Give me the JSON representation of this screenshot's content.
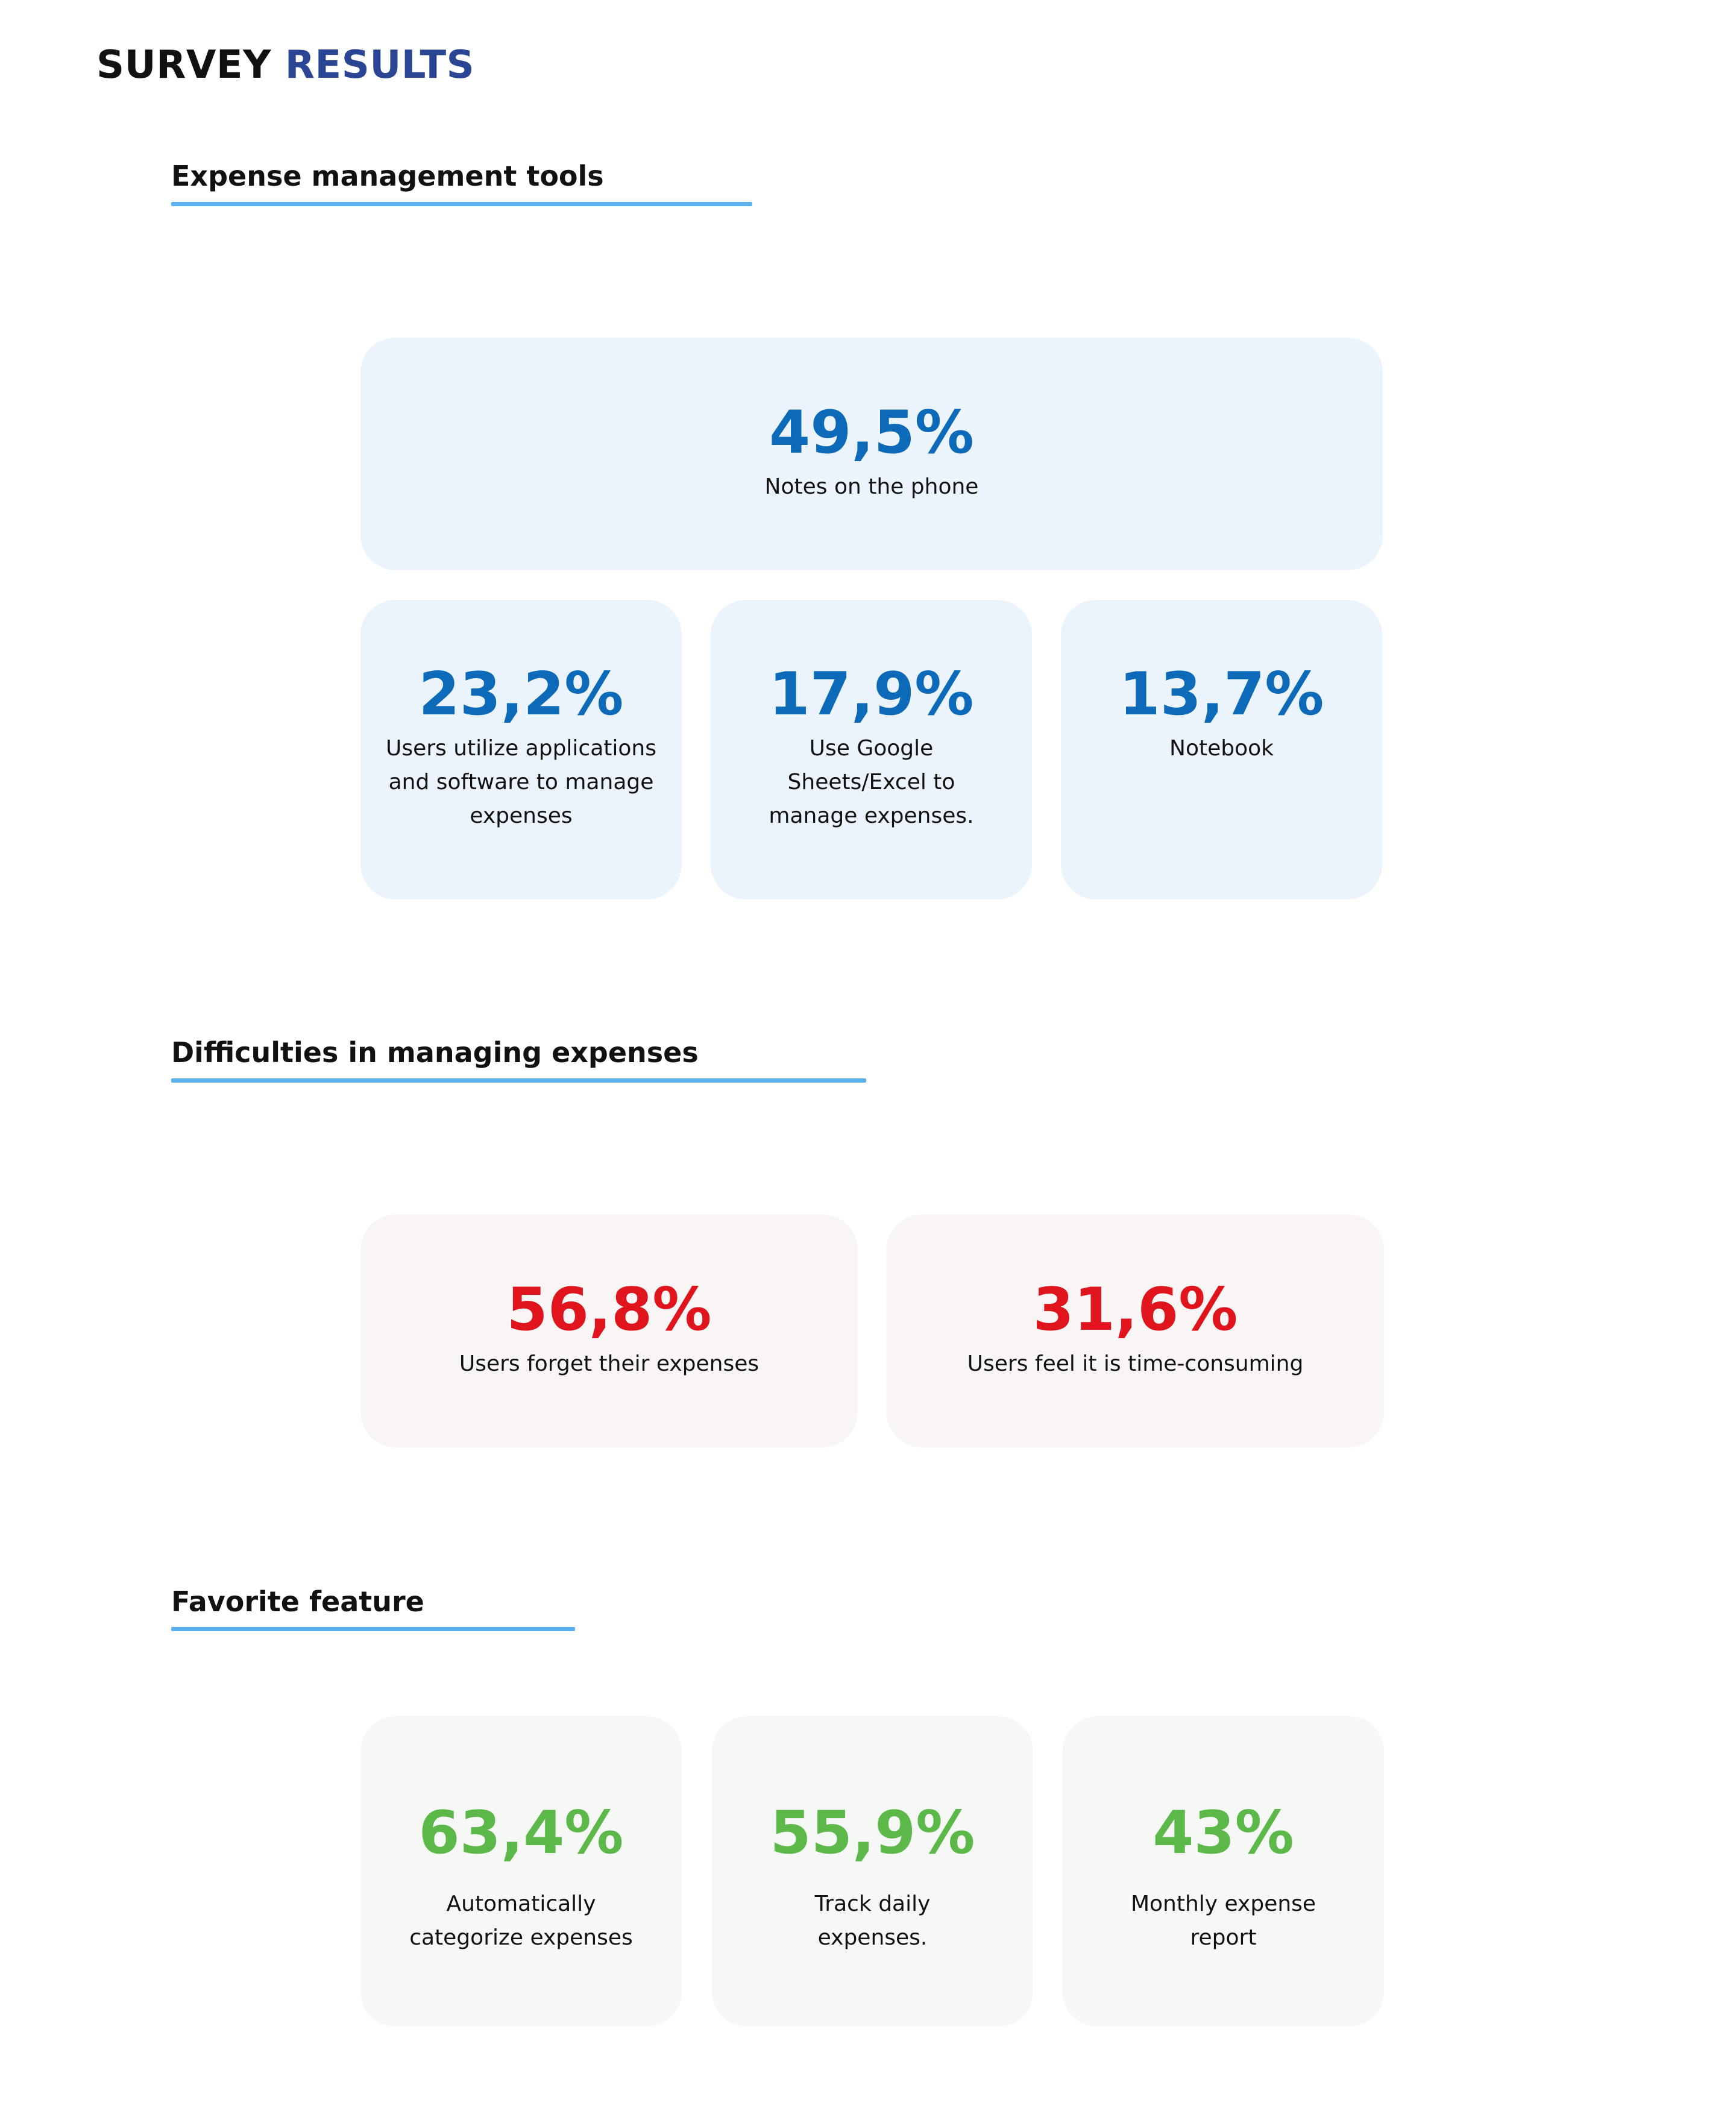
{
  "header": {
    "title_part1": "SURVEY",
    "title_part2": "RESULTS"
  },
  "colors": {
    "title_accent": "#2a4593",
    "underline": "#5ab0ee",
    "tools_value": "#0d6ab8",
    "difficulties_value": "#e0141c",
    "features_value": "#5db84a",
    "tools_card_bg": "#ebf4fc",
    "difficulties_card_bg": "#f9f5f5",
    "features_card_bg": "#f5f8f5"
  },
  "sections": {
    "tools": {
      "title": "Expense management tools",
      "stats": [
        {
          "value": "49,5%",
          "label": "Notes on the phone"
        },
        {
          "value": "23,2%",
          "label_lines": [
            "Users utilize applications",
            "and software to manage",
            "expenses"
          ]
        },
        {
          "value": "17,9%",
          "label_lines": [
            "Use Google",
            "Sheets/Excel to",
            "manage expenses."
          ]
        },
        {
          "value": "13,7%",
          "label": "Notebook"
        }
      ]
    },
    "difficulties": {
      "title": "Difficulties in managing expenses",
      "stats": [
        {
          "value": "56,8%",
          "label": "Users forget their expenses"
        },
        {
          "value": "31,6%",
          "label": "Users feel it is time-consuming"
        }
      ]
    },
    "features": {
      "title": "Favorite feature",
      "stats": [
        {
          "value": "63,4%",
          "label_lines": [
            "Automatically",
            "categorize expenses"
          ]
        },
        {
          "value": "55,9%",
          "label_lines": [
            "Track daily",
            "expenses."
          ]
        },
        {
          "value": "43%",
          "label_lines": [
            "Monthly expense",
            "report"
          ]
        }
      ]
    }
  }
}
